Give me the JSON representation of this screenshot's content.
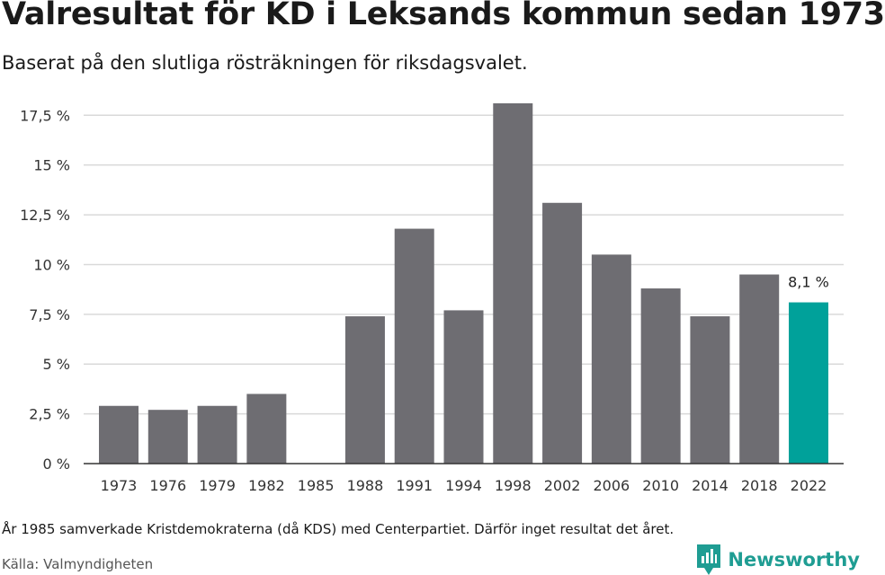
{
  "title": "Valresultat för KD i Leksands kommun sedan 1973",
  "subtitle": "Baserat på den slutliga rösträkningen för riksdagsvalet.",
  "footnote": "År 1985 samverkade Kristdemokraterna (då KDS) med Centerpartiet. Därför inget resultat det året.",
  "source": "Källa: Valmyndigheten",
  "brand": "Newsworthy",
  "colors": {
    "bar": "#6e6d72",
    "highlight": "#00a19a",
    "grid": "#d9d9d9",
    "axis": "#333333",
    "brand": "#1f9d93"
  },
  "chart_data": {
    "type": "bar",
    "categories": [
      "1973",
      "1976",
      "1979",
      "1982",
      "1985",
      "1988",
      "1991",
      "1994",
      "1998",
      "2002",
      "2006",
      "2010",
      "2014",
      "2018",
      "2022"
    ],
    "values": [
      2.9,
      2.7,
      2.9,
      3.5,
      null,
      7.4,
      11.8,
      7.7,
      18.1,
      13.1,
      10.5,
      8.8,
      7.4,
      9.5,
      8.1
    ],
    "highlight_category": "2022",
    "data_labels": {
      "2022": "8,1 %"
    },
    "yticks": [
      0,
      2.5,
      5,
      7.5,
      10,
      12.5,
      15,
      17.5
    ],
    "ytick_labels": [
      "0 %",
      "2,5 %",
      "5 %",
      "7,5 %",
      "10 %",
      "12,5 %",
      "15 %",
      "17,5 %"
    ],
    "ylim": [
      0,
      18.1
    ],
    "xlabel": "",
    "ylabel": "",
    "grid": true
  }
}
